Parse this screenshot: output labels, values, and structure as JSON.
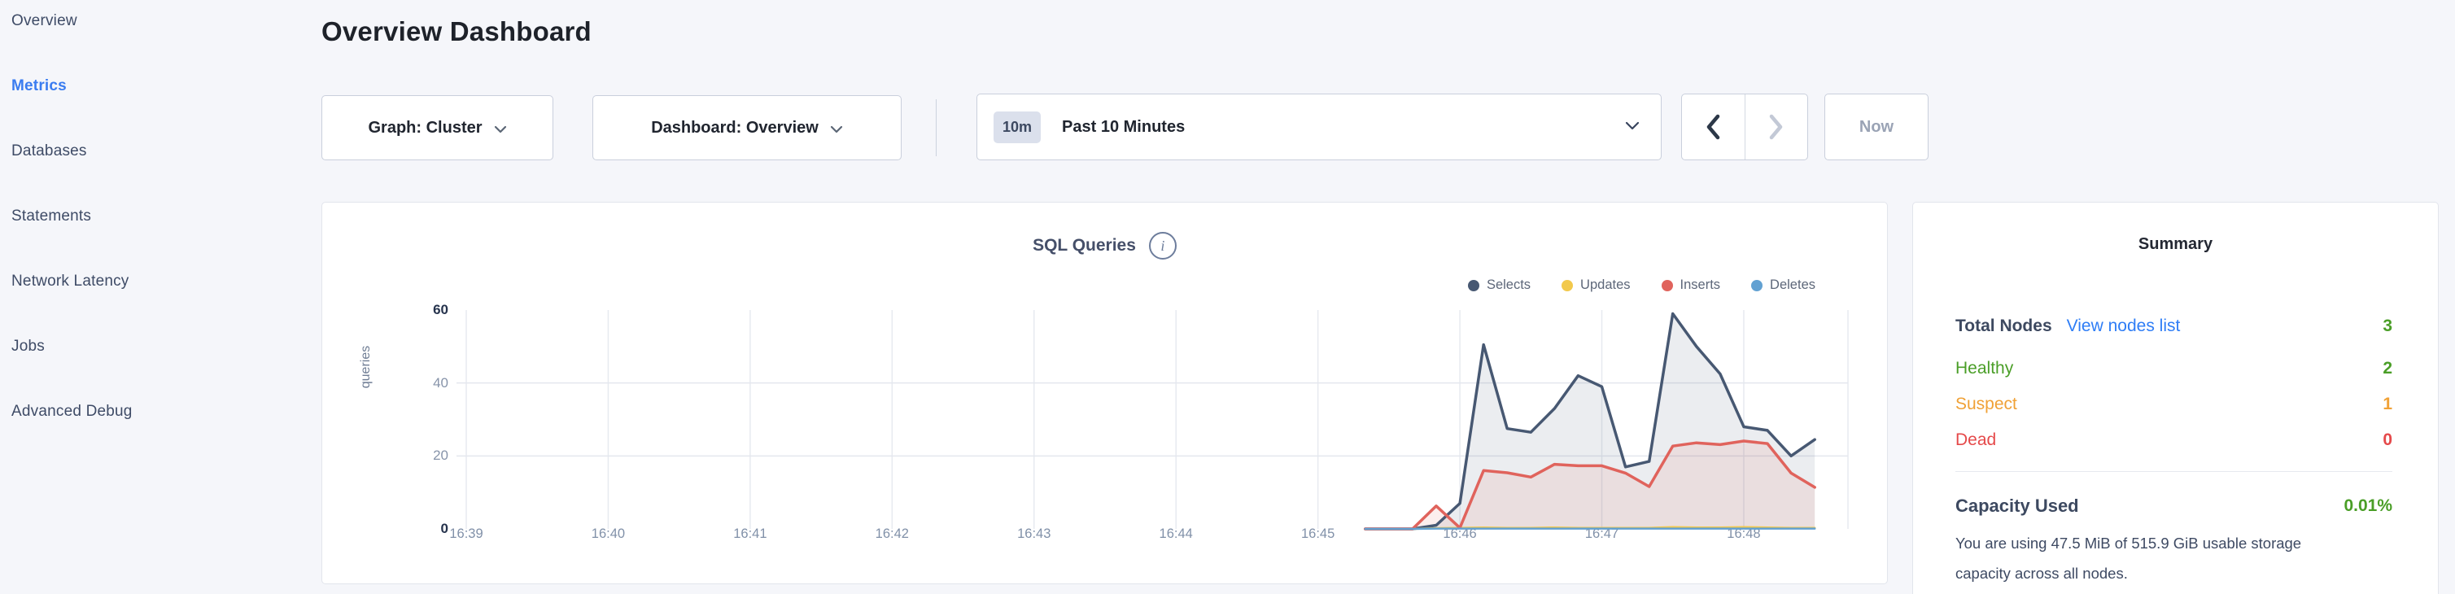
{
  "sidebar": {
    "items": [
      {
        "label": "Overview",
        "active": false
      },
      {
        "label": "Metrics",
        "active": true
      },
      {
        "label": "Databases",
        "active": false
      },
      {
        "label": "Statements",
        "active": false
      },
      {
        "label": "Network Latency",
        "active": false
      },
      {
        "label": "Jobs",
        "active": false
      },
      {
        "label": "Advanced Debug",
        "active": false
      }
    ]
  },
  "header": {
    "title": "Overview Dashboard"
  },
  "controls": {
    "graph_dropdown": "Graph: Cluster",
    "dashboard_dropdown": "Dashboard: Overview",
    "time_badge": "10m",
    "time_label": "Past 10 Minutes",
    "prev_arrow": "previous-time-window",
    "next_arrow": "next-time-window",
    "now_label": "Now"
  },
  "chart": {
    "title": "SQL Queries",
    "info_icon": "i"
  },
  "chart_data": {
    "type": "area",
    "title": "SQL Queries",
    "ylabel": "queries",
    "ylim": [
      0,
      60
    ],
    "yticks": [
      0,
      20,
      40,
      60
    ],
    "grid_yticks": [
      20,
      40
    ],
    "grid": true,
    "legend_position": "top-right",
    "x_tick_labels": [
      "16:39",
      "16:40",
      "16:41",
      "16:42",
      "16:43",
      "16:44",
      "16:45",
      "16:46",
      "16:47",
      "16:48"
    ],
    "x_tick_interval_seconds": 60,
    "sample_offsets_seconds": [
      380,
      390,
      400,
      410,
      420,
      430,
      440,
      450,
      460,
      470,
      480,
      490,
      500,
      510,
      520,
      530,
      540,
      550,
      560,
      570
    ],
    "series": [
      {
        "name": "Selects",
        "color": "#475872",
        "fill": true,
        "line_width": 3.5,
        "values": [
          0,
          0,
          0,
          1,
          7,
          50.5,
          27.5,
          26.5,
          33,
          42,
          39,
          17,
          18.5,
          59,
          50,
          42.5,
          28,
          27,
          20,
          24.5
        ]
      },
      {
        "name": "Updates",
        "color": "#f2c94c",
        "fill": false,
        "line_width": 2.5,
        "values": [
          0,
          0,
          0,
          0.2,
          0.3,
          0.4,
          0.3,
          0.3,
          0.4,
          0.3,
          0.3,
          0.3,
          0.3,
          0.5,
          0.4,
          0.4,
          0.5,
          0.4,
          0.3,
          0.3
        ]
      },
      {
        "name": "Inserts",
        "color": "#e0635c",
        "fill": true,
        "line_width": 3.5,
        "values": [
          0,
          0,
          0,
          6.3,
          0.3,
          16,
          15.4,
          14.2,
          17.7,
          17.3,
          17.3,
          15.3,
          11.6,
          22.7,
          23.6,
          23.1,
          24.1,
          23.4,
          15.3,
          11.4
        ]
      },
      {
        "name": "Deletes",
        "color": "#62a1d2",
        "fill": false,
        "line_width": 2.5,
        "values": [
          0,
          0,
          0,
          0.1,
          0.1,
          0.1,
          0.1,
          0.1,
          0.1,
          0.1,
          0.1,
          0.1,
          0.1,
          0.1,
          0.1,
          0.1,
          0.1,
          0.1,
          0.1,
          0.1
        ]
      }
    ]
  },
  "summary": {
    "title": "Summary",
    "total_nodes_label": "Total Nodes",
    "view_nodes_link": "View nodes list",
    "total_nodes_value": "3",
    "healthy_label": "Healthy",
    "healthy_value": "2",
    "suspect_label": "Suspect",
    "suspect_value": "1",
    "dead_label": "Dead",
    "dead_value": "0",
    "capacity_label": "Capacity Used",
    "capacity_value": "0.01%",
    "capacity_text": "You are using 47.5 MiB of 515.9 GiB usable storage capacity across all nodes."
  }
}
